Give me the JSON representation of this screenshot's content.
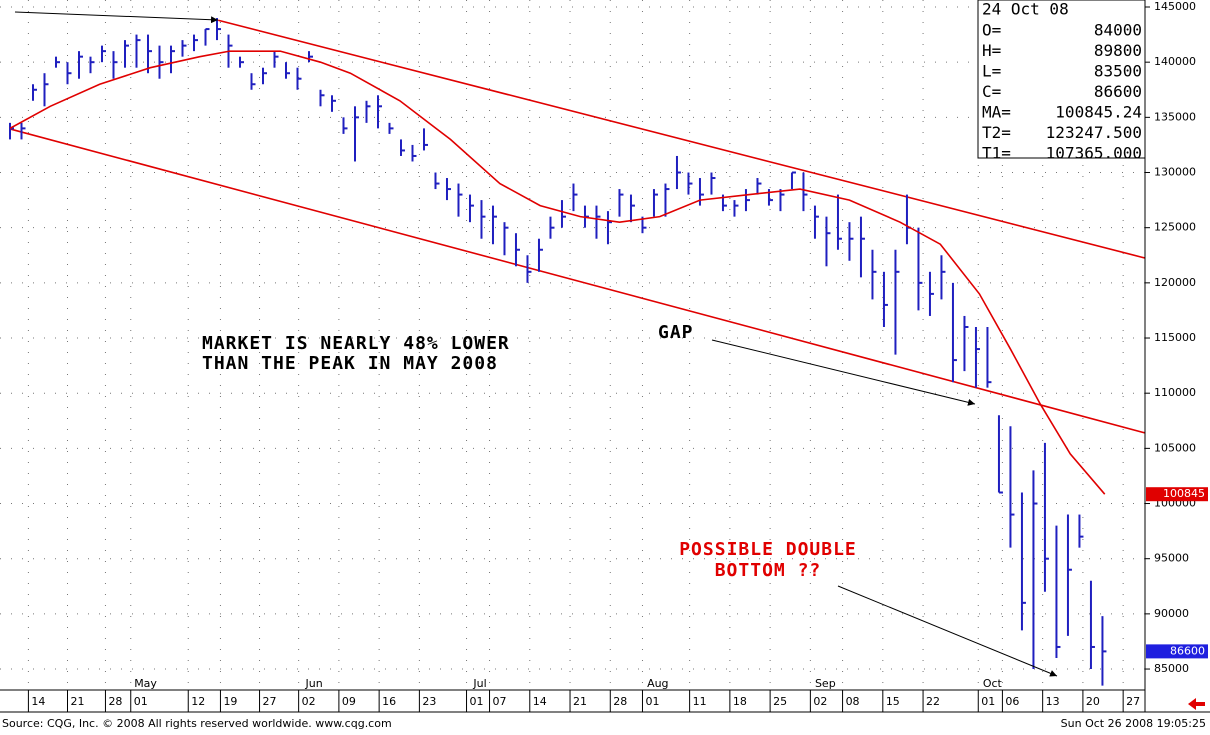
{
  "chart_data": {
    "type": "ohlc",
    "high": [
      134500,
      134500,
      138000,
      139000,
      140500,
      140000,
      141000,
      140500,
      141500,
      141000,
      142000,
      142500,
      142500,
      141500,
      141500,
      142000,
      142500,
      143000,
      144000,
      142500,
      140500,
      139000,
      139500,
      141000,
      140000,
      139500,
      141000,
      137500,
      137000,
      135000,
      136000,
      136500,
      137000,
      134500,
      133000,
      132500,
      134000,
      130000,
      129500,
      129000,
      128000,
      127500,
      127000,
      125500,
      124500,
      122500,
      124000,
      126000,
      127500,
      129000,
      127000,
      127000,
      126500,
      128500,
      128000,
      126000,
      128500,
      129000,
      131500,
      130000,
      129500,
      130000,
      128000,
      127500,
      128500,
      129500,
      128500,
      128500,
      130000,
      130000,
      127000,
      126000,
      128000,
      125500,
      126000,
      123000,
      121000,
      123000,
      128000,
      125000,
      121000,
      122500,
      120000,
      117000,
      116000,
      116000,
      108000,
      107000,
      101000,
      103000,
      105500,
      98000,
      99000,
      99000,
      93000,
      89800
    ],
    "low": [
      133000,
      133000,
      136500,
      136000,
      139500,
      138000,
      138500,
      139000,
      140000,
      138500,
      139500,
      139500,
      139000,
      138500,
      139000,
      140500,
      141000,
      141500,
      142000,
      139500,
      139500,
      137500,
      138000,
      139500,
      138500,
      137500,
      140000,
      136000,
      135500,
      133500,
      131000,
      134500,
      134000,
      133500,
      131500,
      131000,
      132000,
      128500,
      127500,
      126000,
      125500,
      124000,
      123500,
      122500,
      121500,
      120000,
      121000,
      124000,
      125000,
      126500,
      125000,
      124000,
      123500,
      126000,
      125500,
      124500,
      126000,
      126000,
      128500,
      128000,
      127000,
      128000,
      126500,
      126000,
      126500,
      128000,
      127000,
      126500,
      128500,
      126500,
      124000,
      121500,
      123000,
      122000,
      120500,
      118500,
      116000,
      113500,
      123500,
      117500,
      117000,
      118500,
      111000,
      112000,
      110500,
      110500,
      101000,
      96000,
      88500,
      85000,
      92000,
      86000,
      88000,
      96000,
      85000,
      83500
    ],
    "close": [
      134000,
      134000,
      137500,
      138000,
      140000,
      139000,
      140500,
      140000,
      141000,
      140000,
      141500,
      142000,
      141000,
      140000,
      141000,
      141500,
      142000,
      143000,
      143000,
      141500,
      140000,
      138000,
      139000,
      140500,
      139000,
      138500,
      140500,
      137000,
      136500,
      134000,
      135000,
      136000,
      136000,
      134000,
      132000,
      131500,
      132500,
      129000,
      128500,
      128000,
      127000,
      126000,
      126000,
      125000,
      123000,
      121000,
      123000,
      125000,
      126000,
      128000,
      126000,
      126000,
      125500,
      128000,
      127000,
      125000,
      128000,
      128500,
      130000,
      129000,
      128000,
      129500,
      127000,
      127000,
      127500,
      129000,
      127500,
      128000,
      130000,
      128000,
      126000,
      124500,
      124000,
      124000,
      124000,
      121000,
      118000,
      121000,
      125000,
      120000,
      119000,
      121000,
      113000,
      116000,
      114000,
      111000,
      101000,
      99000,
      91000,
      100000,
      95000,
      87000,
      94000,
      97000,
      87000,
      86600
    ],
    "color": "#1f1fbf",
    "moving_average": {
      "color": "#e00000",
      "x": [
        0,
        3.5,
        7.8,
        12.2,
        16.5,
        19.1,
        23.5,
        27,
        29.6,
        33.9,
        38.3,
        42.6,
        46.1,
        49.6,
        53,
        56.5,
        60,
        64.3,
        68.7,
        73,
        77.4,
        80.9,
        84.3,
        87,
        89.6,
        92.2,
        95.2
      ],
      "values": [
        134000,
        136000,
        138000,
        139500,
        140500,
        141000,
        141000,
        140000,
        139000,
        136500,
        133000,
        129000,
        127000,
        126000,
        125500,
        126000,
        127500,
        128000,
        128500,
        127500,
        125500,
        123500,
        119000,
        114000,
        109000,
        104500,
        100845
      ]
    },
    "trendlines": [
      {
        "color": "#e00000",
        "x": [
          18.1,
          98.7
        ],
        "values": [
          143800,
          122250
        ]
      },
      {
        "color": "#e00000",
        "x": [
          0,
          98.7
        ],
        "values": [
          133950,
          106400
        ]
      }
    ],
    "xlim": [
      -0.87,
      98.7
    ],
    "ylim": [
      83100,
      145635
    ],
    "yticks": [
      145000,
      140000,
      135000,
      130000,
      125000,
      120000,
      115000,
      110000,
      105000,
      100000,
      95000,
      90000,
      85000
    ],
    "xticks": [
      {
        "value": 1.6,
        "label": "14"
      },
      {
        "value": 5,
        "label": "21"
      },
      {
        "value": 8.3,
        "label": "28"
      },
      {
        "value": 10.5,
        "label": "01"
      },
      {
        "value": 15.5,
        "label": "12"
      },
      {
        "value": 18.3,
        "label": "19"
      },
      {
        "value": 21.7,
        "label": "27"
      },
      {
        "value": 25.1,
        "label": "02"
      },
      {
        "value": 28.6,
        "label": "09"
      },
      {
        "value": 32.1,
        "label": "16"
      },
      {
        "value": 35.6,
        "label": "23"
      },
      {
        "value": 39.7,
        "label": "01"
      },
      {
        "value": 41.7,
        "label": "07"
      },
      {
        "value": 45.2,
        "label": "14"
      },
      {
        "value": 48.7,
        "label": "21"
      },
      {
        "value": 52.2,
        "label": "28"
      },
      {
        "value": 55,
        "label": "01"
      },
      {
        "value": 59.1,
        "label": "11"
      },
      {
        "value": 62.6,
        "label": "18"
      },
      {
        "value": 66.1,
        "label": "25"
      },
      {
        "value": 69.6,
        "label": "02"
      },
      {
        "value": 72.4,
        "label": "08"
      },
      {
        "value": 75.9,
        "label": "15"
      },
      {
        "value": 79.4,
        "label": "22"
      },
      {
        "value": 84.2,
        "label": "01"
      },
      {
        "value": 86.3,
        "label": "06"
      },
      {
        "value": 89.8,
        "label": "13"
      },
      {
        "value": 93.3,
        "label": "20"
      },
      {
        "value": 96.8,
        "label": "27"
      }
    ],
    "months": [
      {
        "value": 10.8,
        "label": "May"
      },
      {
        "value": 25.7,
        "label": "Jun"
      },
      {
        "value": 40.3,
        "label": "Jul"
      },
      {
        "value": 55.4,
        "label": "Aug"
      },
      {
        "value": 70,
        "label": "Sep"
      },
      {
        "value": 84.6,
        "label": "Oct"
      }
    ],
    "grid": true,
    "last_labels": [
      {
        "value": 100845,
        "color": "#e00000"
      },
      {
        "value": 86600,
        "color": "#1f1fdf"
      }
    ],
    "info": {
      "date": "24 Oct 08",
      "rows": [
        [
          "O=",
          "84000"
        ],
        [
          "H=",
          "89800"
        ],
        [
          "L=",
          "83500"
        ],
        [
          "C=",
          "86600"
        ],
        [
          "MA=",
          "100845.24"
        ],
        [
          "T2=",
          "123247.500"
        ],
        [
          "T1=",
          "107365.000"
        ]
      ]
    },
    "annotations": {
      "market": [
        "MARKET IS NEARLY 48% LOWER",
        "THAN THE PEAK IN MAY 2008"
      ],
      "gap": "GAP",
      "bottom": [
        "POSSIBLE DOUBLE",
        "BOTTOM ??"
      ]
    },
    "source": "Source: CQG, Inc. © 2008 All rights reserved worldwide. www.cqg.com",
    "timestamp": "Sun Oct 26 2008 19:05:25"
  }
}
